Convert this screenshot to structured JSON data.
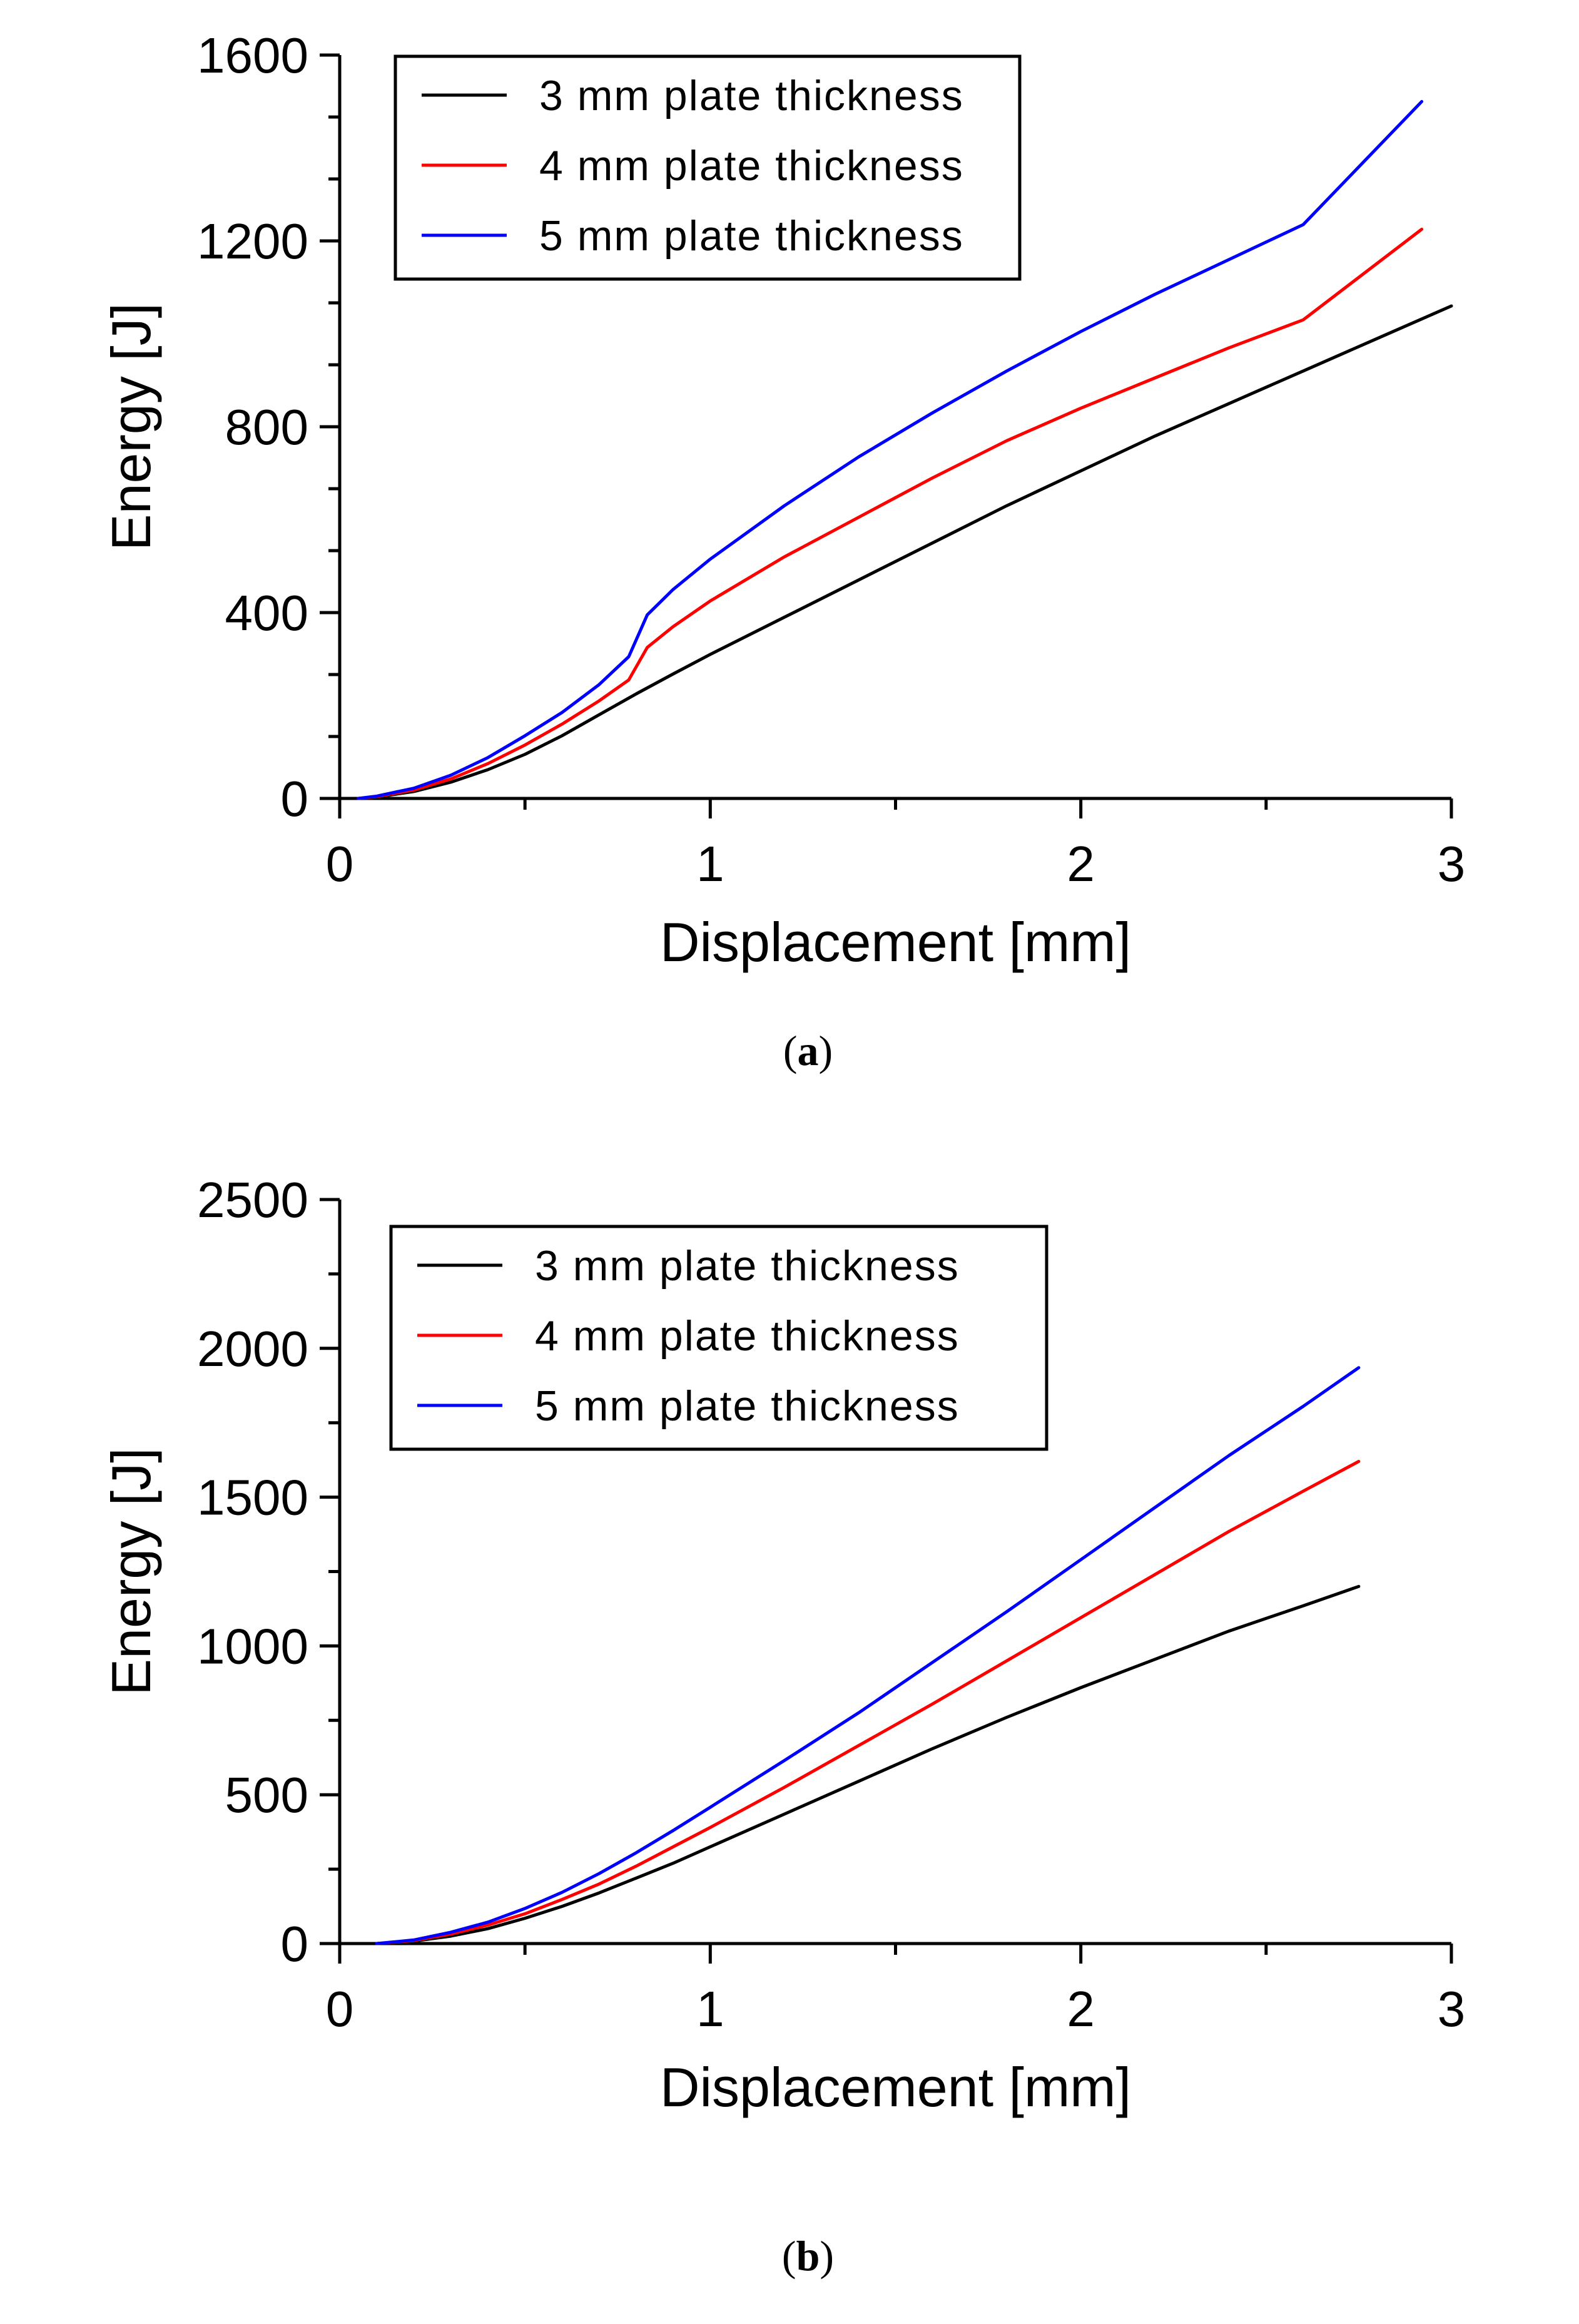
{
  "chart_data": [
    {
      "type": "line",
      "panel_label": "a",
      "xlabel": "Displacement [mm]",
      "ylabel": "Energy [J]",
      "xlim": [
        0,
        3
      ],
      "ylim": [
        0,
        1600
      ],
      "xticks": [
        0,
        1,
        2,
        3
      ],
      "xtick_labels": [
        "0",
        "1",
        "2",
        "3"
      ],
      "yticks": [
        0,
        400,
        800,
        1200,
        1600
      ],
      "ytick_labels": [
        "0",
        "400",
        "800",
        "1200",
        "1600"
      ],
      "grid": false,
      "legend_position": "top-left",
      "series": [
        {
          "name": "3 mm plate thickness",
          "color": "#000000",
          "x": [
            0.05,
            0.1,
            0.2,
            0.3,
            0.4,
            0.5,
            0.6,
            0.7,
            0.8,
            0.9,
            1.0,
            1.2,
            1.4,
            1.6,
            1.8,
            2.0,
            2.2,
            2.4,
            2.6,
            2.8,
            3.0
          ],
          "y": [
            0,
            3,
            15,
            35,
            62,
            95,
            135,
            180,
            225,
            268,
            310,
            390,
            470,
            550,
            630,
            705,
            780,
            850,
            920,
            990,
            1060
          ]
        },
        {
          "name": "4 mm plate thickness",
          "color": "#ff0000",
          "x": [
            0.05,
            0.1,
            0.2,
            0.3,
            0.4,
            0.5,
            0.6,
            0.7,
            0.78,
            0.83,
            0.9,
            1.0,
            1.2,
            1.4,
            1.6,
            1.8,
            2.0,
            2.2,
            2.4,
            2.6,
            2.92
          ],
          "y": [
            0,
            4,
            18,
            42,
            75,
            115,
            160,
            210,
            255,
            325,
            370,
            425,
            520,
            605,
            690,
            770,
            840,
            905,
            970,
            1030,
            1225
          ]
        },
        {
          "name": "5 mm plate thickness",
          "color": "#0000ff",
          "x": [
            0.05,
            0.1,
            0.2,
            0.3,
            0.4,
            0.5,
            0.6,
            0.7,
            0.78,
            0.83,
            0.9,
            1.0,
            1.2,
            1.4,
            1.6,
            1.8,
            2.0,
            2.2,
            2.4,
            2.6,
            2.92
          ],
          "y": [
            0,
            5,
            22,
            50,
            88,
            135,
            185,
            245,
            305,
            395,
            450,
            515,
            630,
            735,
            830,
            920,
            1005,
            1085,
            1160,
            1235,
            1500
          ]
        }
      ]
    },
    {
      "type": "line",
      "panel_label": "b",
      "xlabel": "Displacement [mm]",
      "ylabel": "Energy [J]",
      "xlim": [
        0,
        3
      ],
      "ylim": [
        0,
        2500
      ],
      "xticks": [
        0,
        1,
        2,
        3
      ],
      "xtick_labels": [
        "0",
        "1",
        "2",
        "3"
      ],
      "yticks": [
        0,
        500,
        1000,
        1500,
        2000,
        2500
      ],
      "ytick_labels": [
        "0",
        "500",
        "1000",
        "1500",
        "2000",
        "2500"
      ],
      "grid": false,
      "legend_position": "top-left",
      "series": [
        {
          "name": "3 mm plate thickness",
          "color": "#000000",
          "x": [
            0.1,
            0.2,
            0.3,
            0.4,
            0.5,
            0.6,
            0.7,
            0.8,
            0.9,
            1.0,
            1.2,
            1.4,
            1.6,
            1.8,
            2.0,
            2.2,
            2.4,
            2.6,
            2.75
          ],
          "y": [
            0,
            8,
            25,
            50,
            85,
            125,
            170,
            220,
            270,
            325,
            435,
            545,
            655,
            760,
            860,
            955,
            1050,
            1135,
            1200
          ]
        },
        {
          "name": "4 mm plate thickness",
          "color": "#ff0000",
          "x": [
            0.1,
            0.2,
            0.3,
            0.4,
            0.5,
            0.6,
            0.7,
            0.8,
            0.9,
            1.0,
            1.2,
            1.4,
            1.6,
            1.8,
            2.0,
            2.2,
            2.4,
            2.6,
            2.75
          ],
          "y": [
            0,
            10,
            32,
            62,
            100,
            148,
            200,
            260,
            325,
            390,
            525,
            665,
            805,
            950,
            1095,
            1240,
            1385,
            1520,
            1620
          ]
        },
        {
          "name": "5 mm plate thickness",
          "color": "#0000ff",
          "x": [
            0.1,
            0.2,
            0.3,
            0.4,
            0.5,
            0.6,
            0.7,
            0.8,
            0.9,
            1.0,
            1.2,
            1.4,
            1.6,
            1.8,
            2.0,
            2.2,
            2.4,
            2.6,
            2.75
          ],
          "y": [
            0,
            12,
            38,
            72,
            118,
            172,
            235,
            305,
            380,
            458,
            615,
            775,
            945,
            1115,
            1290,
            1465,
            1640,
            1805,
            1935
          ]
        }
      ]
    }
  ]
}
